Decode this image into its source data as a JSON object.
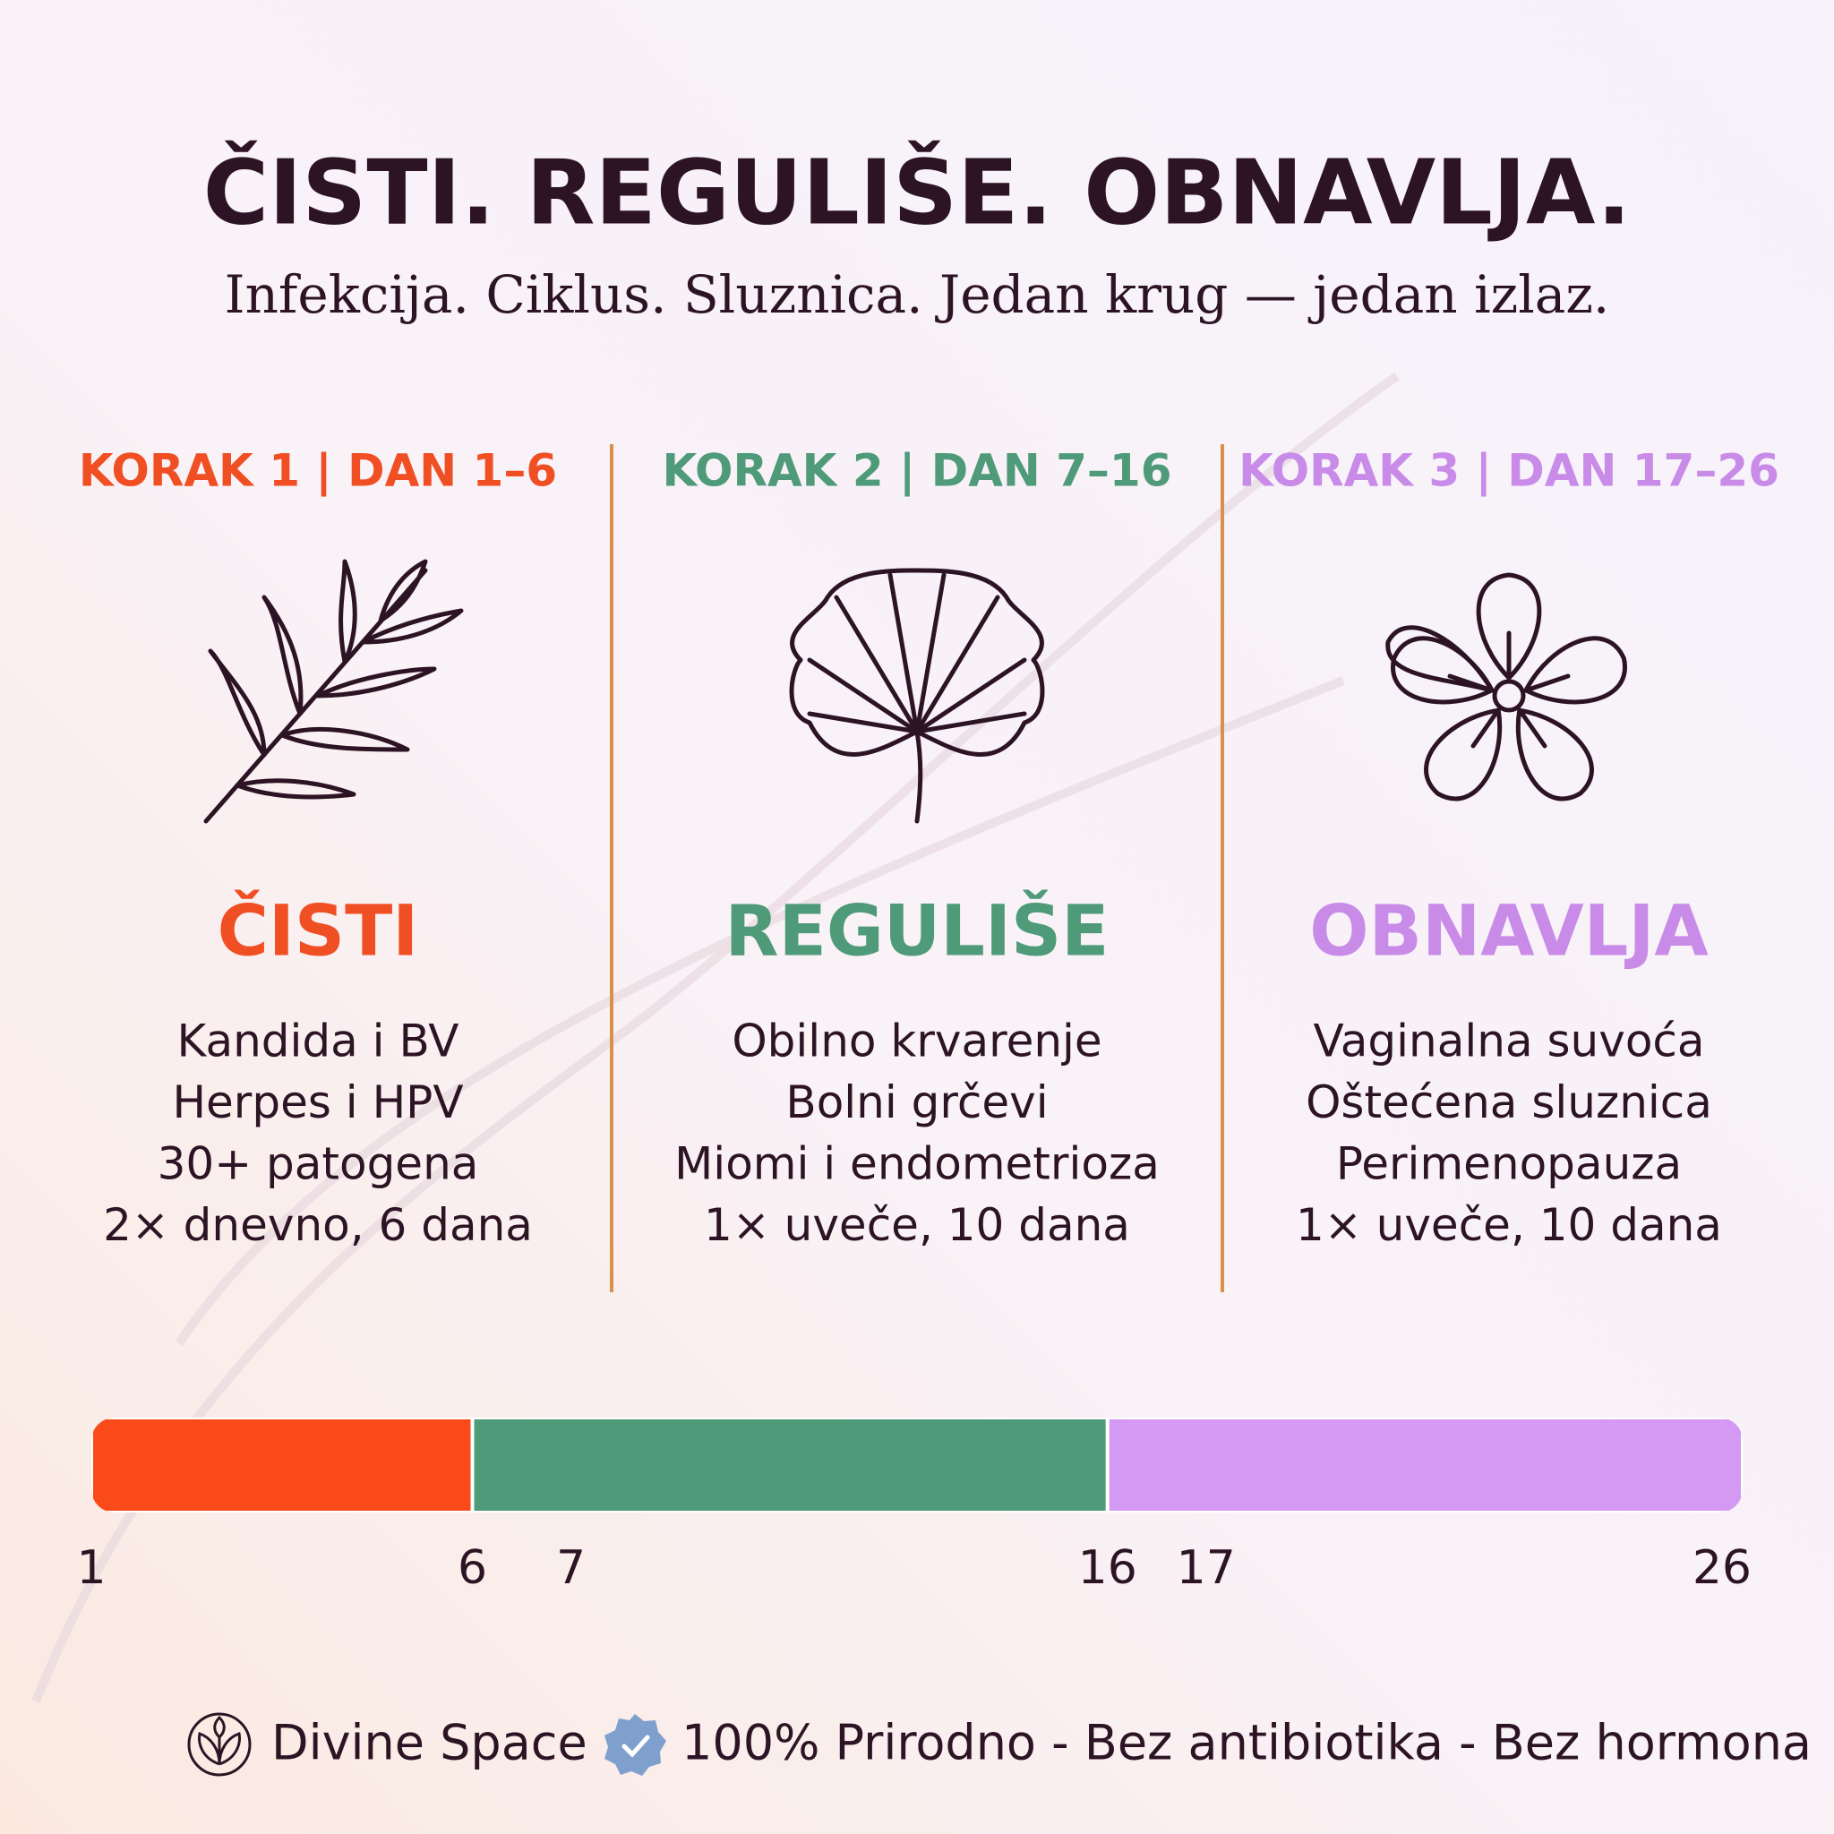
{
  "header": {
    "title": "ČISTI. REGULIŠE. OBNAVLJA.",
    "subtitle": "Infekcija. Ciklus. Sluznica. Jedan krug — jedan izlaz."
  },
  "steps": [
    {
      "label": "KORAK 1 | DAN 1–6",
      "name": "ČISTI",
      "color": "#f04e23",
      "items": [
        "Kandida i BV",
        "Herpes i HPV",
        "30+ patogena",
        "2× dnevno, 6 dana"
      ]
    },
    {
      "label": "KORAK 2 | DAN 7–16",
      "name": "REGULIŠE",
      "color": "#4f9a78",
      "items": [
        "Obilno krvarenje",
        "Bolni grčevi",
        "Miomi i endometrioza",
        "1× uveče, 10 dana"
      ]
    },
    {
      "label": "KORAK 3 | DAN 17–26",
      "name": "OBNAVLJA",
      "color": "#c98be8",
      "items": [
        "Vaginalna suvoća",
        "Oštećena sluznica",
        "Perimenopauza",
        "1× uveče, 10 dana"
      ]
    }
  ],
  "timeline": {
    "segments": [
      {
        "start": 1,
        "end": 6,
        "color": "#fb4a1a"
      },
      {
        "start": 7,
        "end": 16,
        "color": "#4f9a78"
      },
      {
        "start": 17,
        "end": 26,
        "color": "#d49af3"
      }
    ]
  },
  "footer": {
    "brand": "Divine Space",
    "claim": "100% Prirodno - Bez antibiotika - Bez hormona"
  }
}
